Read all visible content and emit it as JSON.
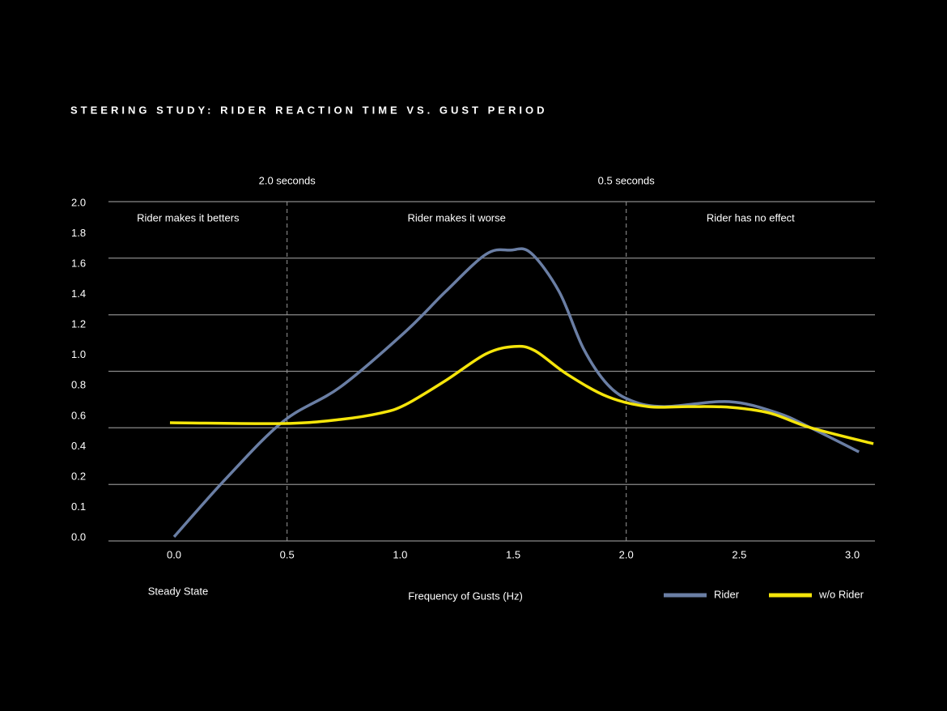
{
  "chart_data": {
    "type": "line",
    "title": "STEERING STUDY: RIDER REACTION TIME VS. GUST PERIOD",
    "x_label": "Frequency of Gusts (Hz)",
    "x_note": "Steady State",
    "xlim": [
      -0.29,
      3.1
    ],
    "ylim": [
      0,
      2.0
    ],
    "xticks": [
      {
        "value": 0,
        "label": "0.0"
      },
      {
        "value": 0.5,
        "label": "0.5"
      },
      {
        "value": 1,
        "label": "1.0"
      },
      {
        "value": 1.5,
        "label": "1.5"
      },
      {
        "value": 2,
        "label": "2.0"
      },
      {
        "value": 2.5,
        "label": "2.5"
      },
      {
        "value": 3,
        "label": "3.0"
      }
    ],
    "ytick_labels": [
      "2.0",
      "1.8",
      "1.6",
      "1.4",
      "1.2",
      "1.0",
      "0.8",
      "0.6",
      "0.4",
      "0.2",
      "0.1",
      "0.0"
    ],
    "gridlines": [
      0,
      0.333,
      0.667,
      1.0,
      1.333,
      1.667,
      2.0
    ],
    "dividers": [
      {
        "x": 0.5,
        "label": "2.0 seconds"
      },
      {
        "x": 2.0,
        "label": "0.5 seconds"
      }
    ],
    "region_labels": [
      "Rider makes it betters",
      "Rider makes it worse",
      "Rider has no effect"
    ],
    "series": [
      {
        "name": "Rider",
        "color": "#6a7ea4",
        "x": [
          0,
          0.233,
          0.484,
          0.735,
          1.022,
          1.201,
          1.38,
          1.487,
          1.577,
          1.703,
          1.81,
          1.918,
          2.025,
          2.168,
          2.455,
          2.67,
          2.814,
          3.029
        ],
        "values": [
          0.024,
          0.372,
          0.706,
          0.907,
          1.232,
          1.47,
          1.69,
          1.714,
          1.699,
          1.47,
          1.136,
          0.921,
          0.826,
          0.792,
          0.821,
          0.754,
          0.668,
          0.525
        ]
      },
      {
        "name": "w/o Rider",
        "color": "#f5e50a",
        "x": [
          -0.018,
          0.484,
          0.735,
          0.914,
          1.022,
          1.201,
          1.38,
          1.505,
          1.595,
          1.738,
          1.918,
          2.097,
          2.276,
          2.455,
          2.634,
          2.814,
          3.093
        ],
        "values": [
          0.697,
          0.692,
          0.716,
          0.754,
          0.802,
          0.945,
          1.103,
          1.146,
          1.122,
          0.983,
          0.85,
          0.792,
          0.792,
          0.788,
          0.754,
          0.668,
          0.573
        ]
      }
    ]
  }
}
